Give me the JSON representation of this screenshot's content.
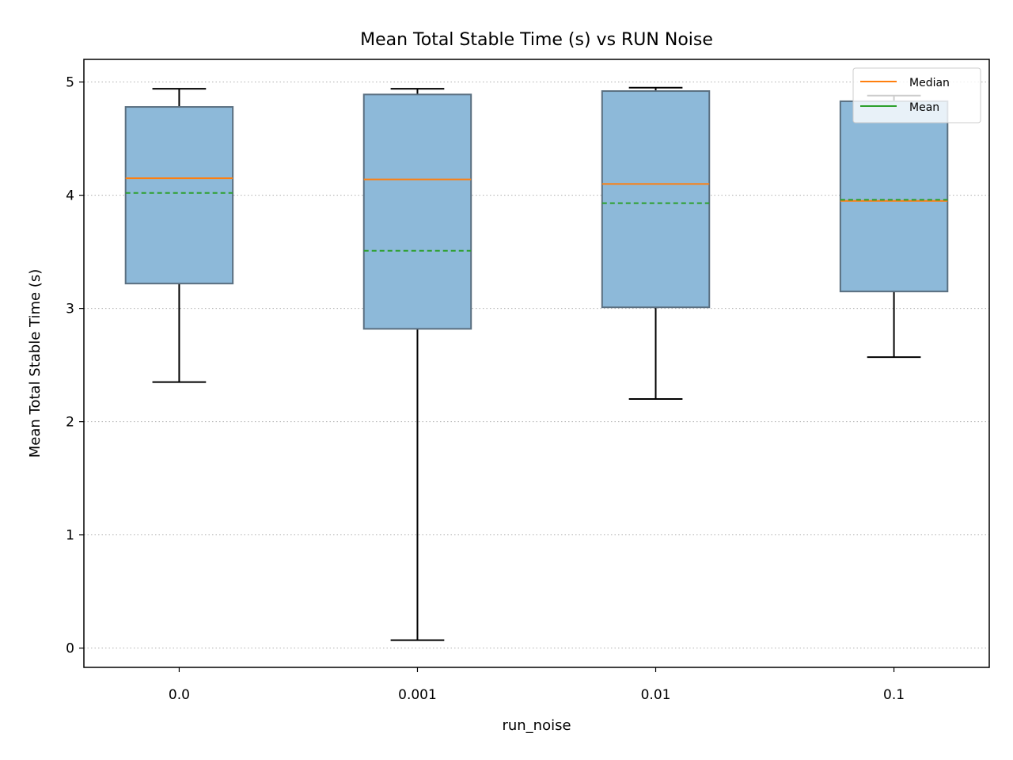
{
  "chart_data": {
    "type": "box",
    "title": "Mean Total Stable Time (s) vs RUN Noise",
    "xlabel": "run_noise",
    "ylabel": "Mean Total Stable Time (s)",
    "ylim": [
      -0.17,
      5.2
    ],
    "yticks": [
      0,
      1,
      2,
      3,
      4,
      5
    ],
    "grid": "y-dotted",
    "legend_position": "top-right",
    "colors": {
      "box_fill": "#8db9d9",
      "box_edge": "#5a6f80",
      "median": "#ff7f0e",
      "mean": "#2ca02c",
      "whisker": "#000000",
      "grid": "#b0b0b0"
    },
    "legend": [
      {
        "label": "Median",
        "color": "#ff7f0e",
        "dashed": false
      },
      {
        "label": "Mean",
        "color": "#2ca02c",
        "dashed": false
      }
    ],
    "categories": [
      "0.0",
      "0.001",
      "0.01",
      "0.1"
    ],
    "boxes": [
      {
        "whislo": 2.35,
        "q1": 3.22,
        "med": 4.15,
        "mean": 4.02,
        "q3": 4.78,
        "whishi": 4.94
      },
      {
        "whislo": 0.07,
        "q1": 2.82,
        "med": 4.14,
        "mean": 3.51,
        "q3": 4.89,
        "whishi": 4.94
      },
      {
        "whislo": 2.2,
        "q1": 3.01,
        "med": 4.1,
        "mean": 3.93,
        "q3": 4.92,
        "whishi": 4.95
      },
      {
        "whislo": 2.57,
        "q1": 3.15,
        "med": 3.95,
        "mean": 3.96,
        "q3": 4.83,
        "whishi": 4.88
      }
    ]
  }
}
